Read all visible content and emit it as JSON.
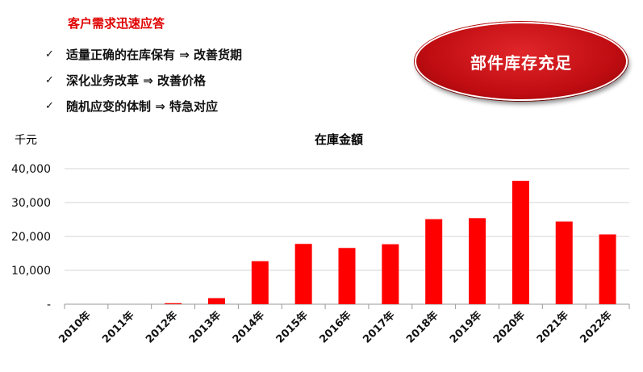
{
  "header": {
    "headline": "客户需求迅速应答",
    "bullets": [
      {
        "check": "✓",
        "text": "适量正确的在库保有 ⇒ 改善货期"
      },
      {
        "check": "✓",
        "text": "深化业务改革 ⇒ 改善价格"
      },
      {
        "check": "✓",
        "text": "随机应变的体制 ⇒ 特急对应"
      }
    ],
    "badge": "部件库存充足"
  },
  "colors": {
    "accent": "#e00000",
    "bar": "#ff0000",
    "badge": "#c00d12"
  },
  "chart_data": {
    "type": "bar",
    "title": "在庫金額",
    "unit_label": "千元",
    "categories": [
      "2010年",
      "2011年",
      "2012年",
      "2013年",
      "2014年",
      "2015年",
      "2016年",
      "2017年",
      "2018年",
      "2019年",
      "2020年",
      "2021年",
      "2022年"
    ],
    "values": [
      0,
      0,
      300,
      1800,
      12700,
      17800,
      16600,
      17700,
      25100,
      25400,
      36400,
      24400,
      20600
    ],
    "ylim": [
      0,
      40000
    ],
    "yticks": [
      0,
      10000,
      20000,
      30000,
      40000
    ],
    "ytick_labels": [
      "-",
      "10,000",
      "20,000",
      "30,000",
      "40,000"
    ],
    "grid": true
  }
}
